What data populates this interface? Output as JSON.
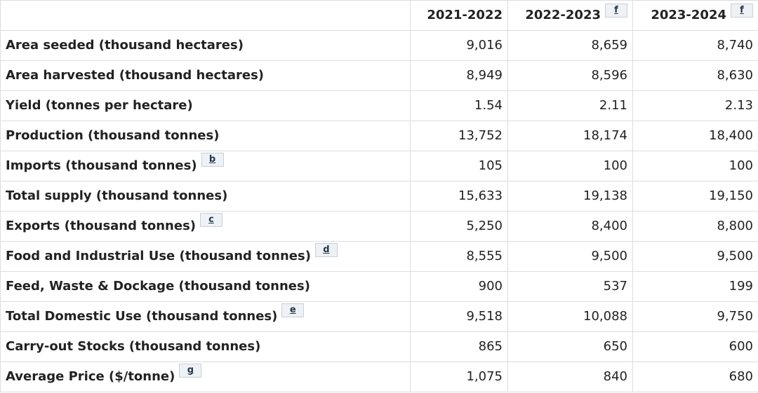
{
  "table": {
    "columns": [
      {
        "label": "2021-2022",
        "footnote": ""
      },
      {
        "label": "2022-2023",
        "footnote": "f"
      },
      {
        "label": "2023-2024",
        "footnote": "f"
      }
    ],
    "rows": [
      {
        "label": "Area seeded (thousand hectares)",
        "footnote": "",
        "values": [
          "9,016",
          "8,659",
          "8,740"
        ]
      },
      {
        "label": "Area harvested (thousand hectares)",
        "footnote": "",
        "values": [
          "8,949",
          "8,596",
          "8,630"
        ]
      },
      {
        "label": "Yield (tonnes per hectare)",
        "footnote": "",
        "values": [
          "1.54",
          "2.11",
          "2.13"
        ]
      },
      {
        "label": "Production (thousand tonnes)",
        "footnote": "",
        "values": [
          "13,752",
          "18,174",
          "18,400"
        ]
      },
      {
        "label": "Imports (thousand tonnes)",
        "footnote": "b",
        "values": [
          "105",
          "100",
          "100"
        ]
      },
      {
        "label": "Total supply (thousand tonnes)",
        "footnote": "",
        "values": [
          "15,633",
          "19,138",
          "19,150"
        ]
      },
      {
        "label": "Exports (thousand tonnes)",
        "footnote": "c",
        "values": [
          "5,250",
          "8,400",
          "8,800"
        ]
      },
      {
        "label": "Food and Industrial Use (thousand tonnes)",
        "footnote": "d",
        "values": [
          "8,555",
          "9,500",
          "9,500"
        ]
      },
      {
        "label": "Feed, Waste & Dockage (thousand tonnes)",
        "footnote": "",
        "values": [
          "900",
          "537",
          "199"
        ]
      },
      {
        "label": "Total Domestic Use (thousand tonnes)",
        "footnote": "e",
        "values": [
          "9,518",
          "10,088",
          "9,750"
        ]
      },
      {
        "label": "Carry-out Stocks (thousand tonnes)",
        "footnote": "",
        "values": [
          "865",
          "650",
          "600"
        ]
      },
      {
        "label": "Average Price ($/tonne)",
        "footnote": "g",
        "values": [
          "1,075",
          "840",
          "680"
        ]
      }
    ]
  }
}
